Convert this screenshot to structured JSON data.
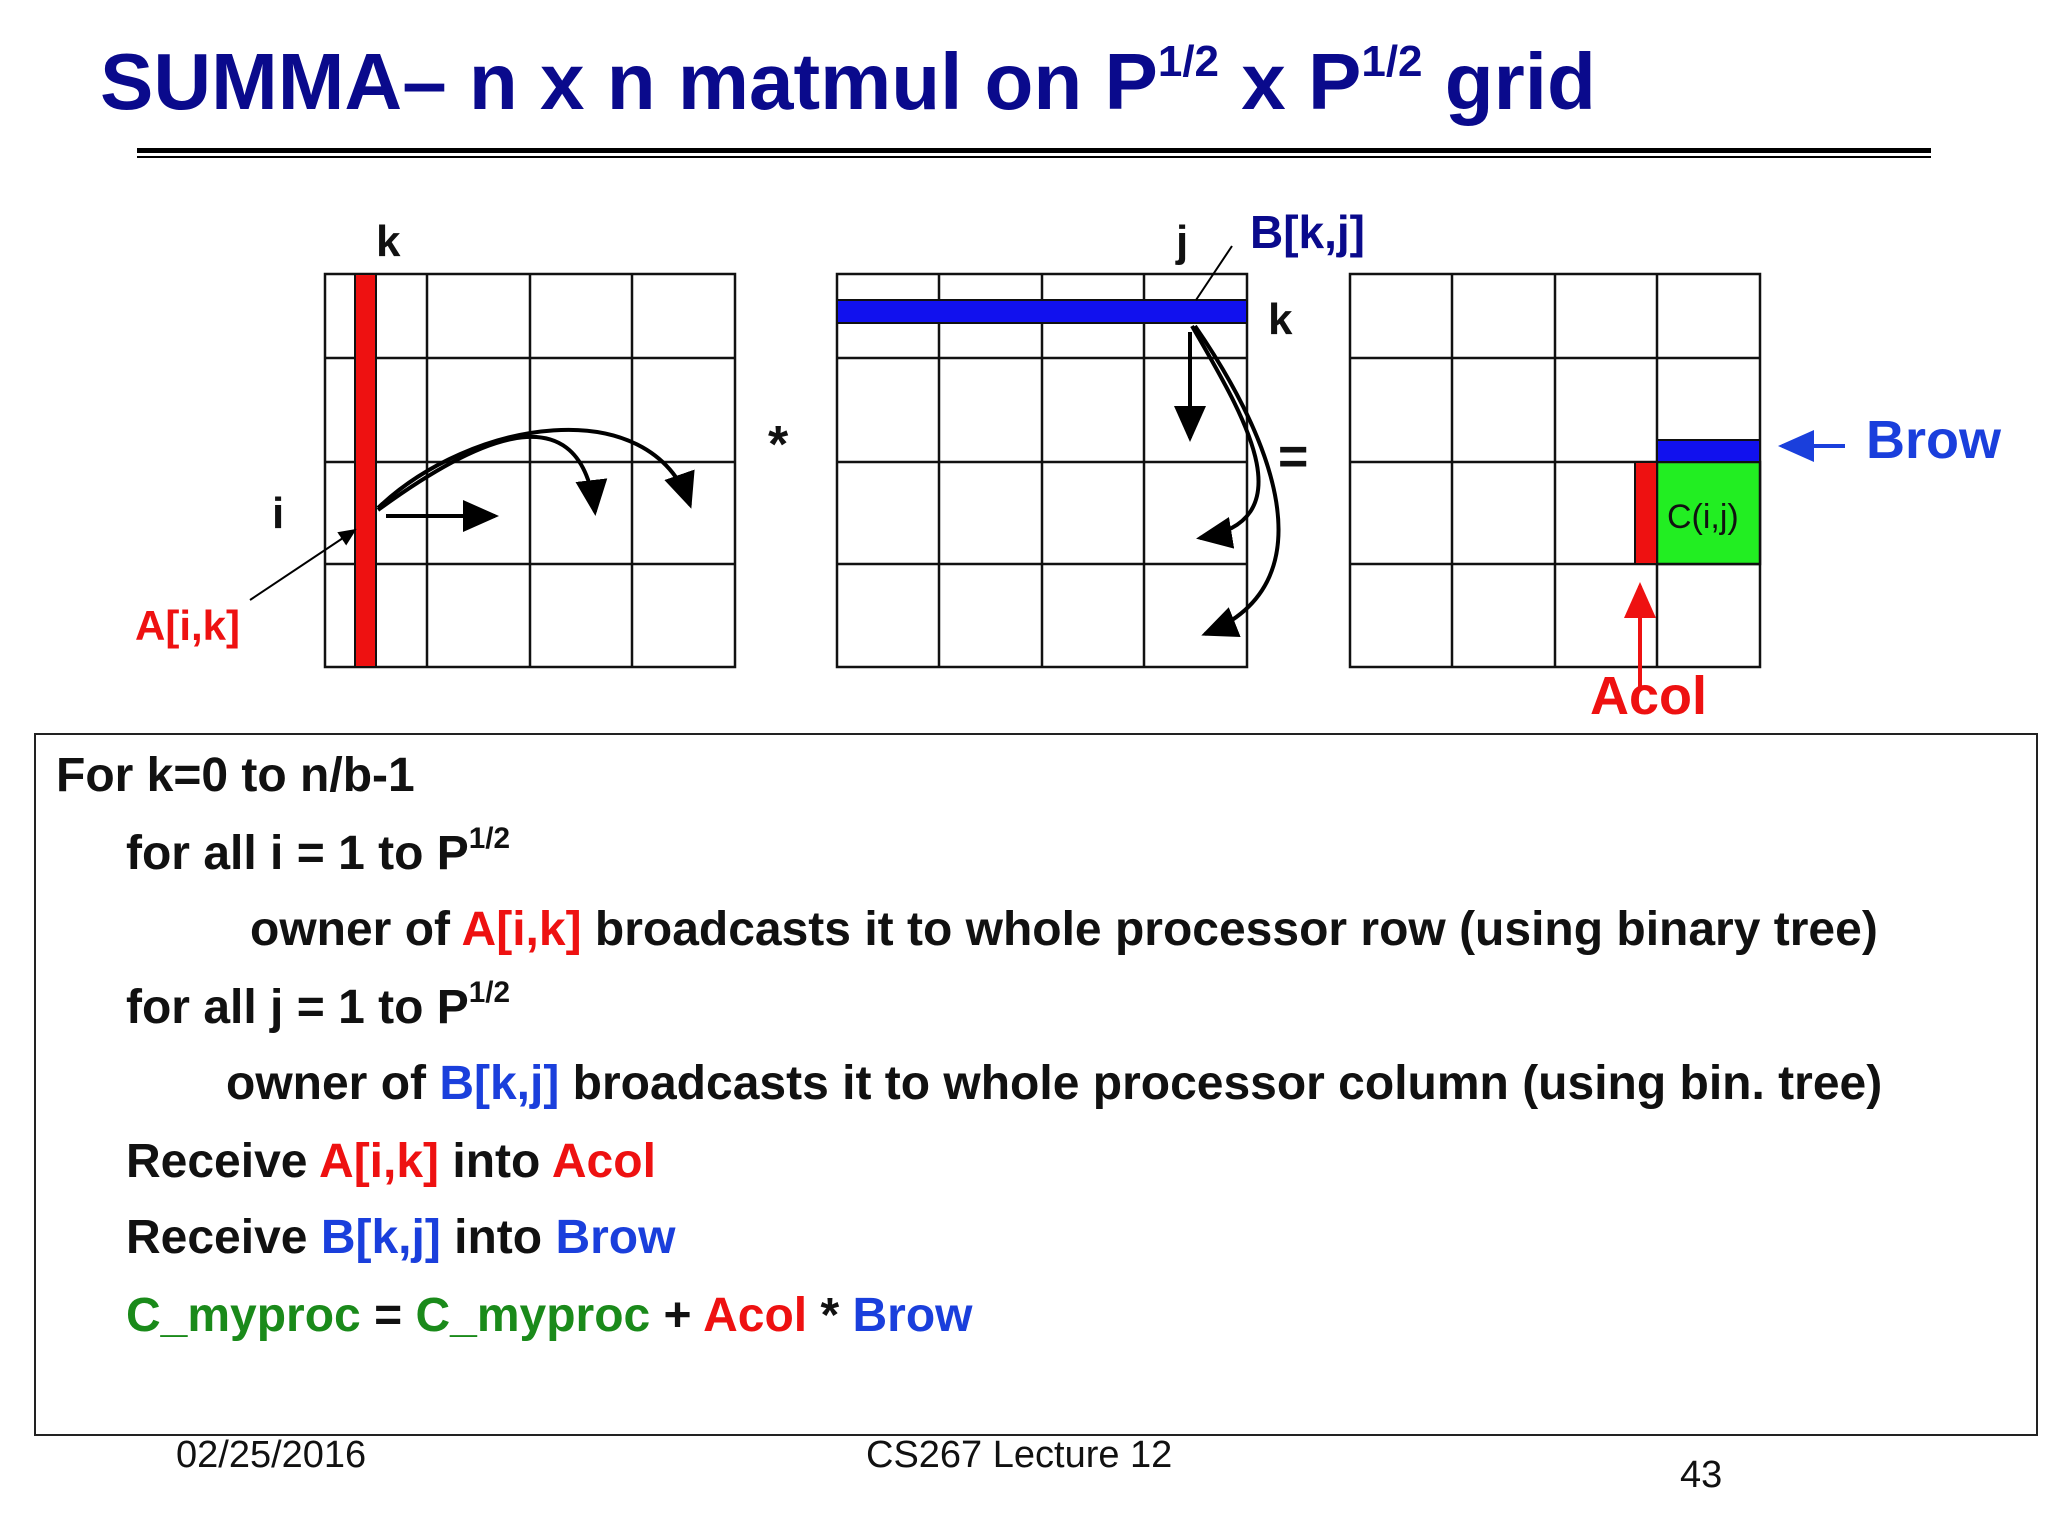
{
  "title": {
    "text": "SUMMA– n x n matmul on P",
    "sup1": "1/2",
    "mid": " x P",
    "sup2": "1/2",
    "end": " grid"
  },
  "colors": {
    "title": "#0a0a8c",
    "red": "#ee1111",
    "blue": "#1a3fdc",
    "green": "#1a8a1a",
    "c_block": "#22ee22"
  },
  "diagram": {
    "label_k_a": "k",
    "label_i": "i",
    "label_aik": "A[i,k]",
    "op_times": "*",
    "label_j": "j",
    "label_bkj": "B[k,j]",
    "label_k_b": "k",
    "op_equals": "=",
    "label_cij": "C(i,j)",
    "label_brow": "Brow",
    "label_acol": "Acol"
  },
  "algorithm": {
    "line1": "For k=0 to n/b-1",
    "line2": {
      "text": "for all i = 1 to P",
      "sup": "1/2"
    },
    "line3": {
      "pre": "owner of ",
      "var": "A[i,k]",
      "post": " broadcasts it to whole processor row (using binary tree)"
    },
    "line4": {
      "text": "for all j = 1 to  P",
      "sup": "1/2"
    },
    "line5": {
      "pre": "owner of ",
      "var": "B[k,j]",
      "post": " broadcasts it to whole processor column (using bin. tree)"
    },
    "line6": {
      "pre": "Receive ",
      "var1": "A[i,k]",
      "mid": " into ",
      "var2": "Acol"
    },
    "line7": {
      "pre": "Receive ",
      "var1": "B[k,j]",
      "mid": " into ",
      "var2": "Brow"
    },
    "line8": {
      "c1": "C_myproc",
      "eq": " = ",
      "c2": "C_myproc",
      "plus": " + ",
      "a": "Acol",
      "times": " * ",
      "b": "Brow"
    }
  },
  "footer": {
    "date": "02/25/2016",
    "course": "CS267 Lecture 12",
    "page": "43"
  }
}
